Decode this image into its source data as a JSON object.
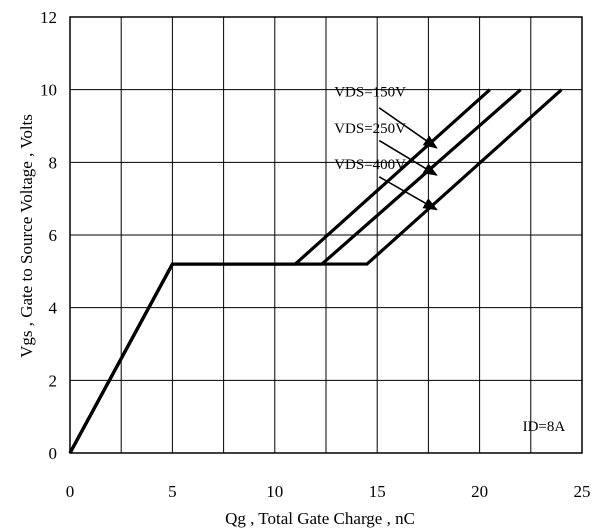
{
  "chart_data": {
    "type": "line",
    "title": "",
    "xlabel": "Qg , Total Gate Charge , nC",
    "ylabel": "Vgs , Gate to Source Voltage , Volts",
    "xlim": [
      0,
      25
    ],
    "ylim": [
      0,
      12
    ],
    "xticks": [
      0,
      5,
      10,
      15,
      20,
      25
    ],
    "yticks": [
      0,
      2,
      4,
      6,
      8,
      10,
      12
    ],
    "grid": true,
    "series": [
      {
        "name": "VDS=150V",
        "x": [
          0,
          5,
          11,
          20.5
        ],
        "y": [
          0,
          5.2,
          5.2,
          10
        ]
      },
      {
        "name": "VDS=250V",
        "x": [
          0,
          5,
          12.3,
          22
        ],
        "y": [
          0,
          5.2,
          5.2,
          10
        ]
      },
      {
        "name": "VDS=400V",
        "x": [
          0,
          5,
          14.5,
          24
        ],
        "y": [
          0,
          5.2,
          5.2,
          10
        ]
      }
    ],
    "annotations": [
      {
        "text": "VDS=150V",
        "text_x": 12.9,
        "text_y": 9.95,
        "arrow_from": [
          15.1,
          9.5
        ],
        "arrow_to": [
          17.9,
          8.4
        ]
      },
      {
        "text": "VDS=250V",
        "text_x": 12.9,
        "text_y": 8.95,
        "arrow_from": [
          15.1,
          8.6
        ],
        "arrow_to": [
          17.9,
          7.65
        ]
      },
      {
        "text": "VDS=400V",
        "text_x": 12.9,
        "text_y": 7.95,
        "arrow_from": [
          15.1,
          7.6
        ],
        "arrow_to": [
          17.9,
          6.7
        ]
      },
      {
        "text": "ID=8A",
        "text_x": 22.1,
        "text_y": 0.75
      }
    ]
  }
}
